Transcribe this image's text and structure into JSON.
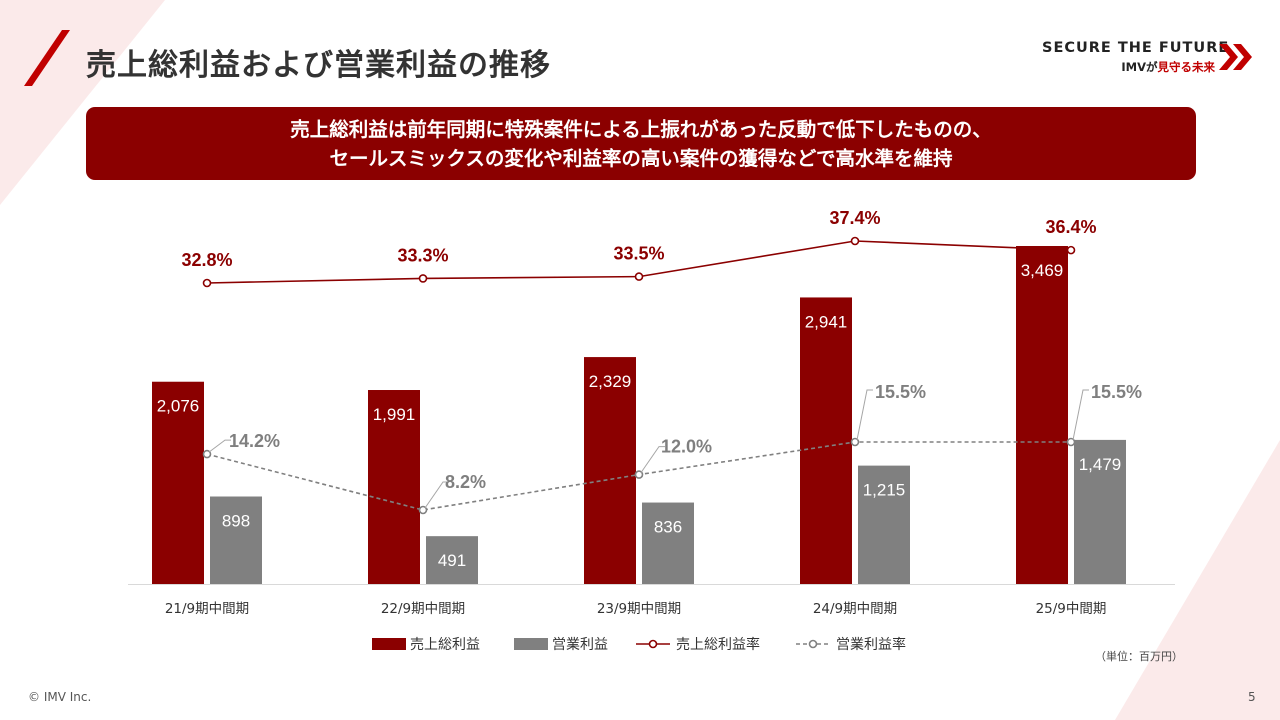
{
  "header": {
    "title": "売上総利益および営業利益の推移",
    "brand_line1": "SECURE THE FUTURE",
    "brand_line2_prefix": "IMVが",
    "brand_line2_highlight": "見守る未来"
  },
  "summary": {
    "line1": "売上総利益は前年同期に特殊案件による上振れがあった反動で低下したものの、",
    "line2": "セールスミックスの変化や利益率の高い案件の獲得などで高水準を維持"
  },
  "chart_data": {
    "type": "bar",
    "title": "",
    "categories": [
      "21/9期中間期",
      "22/9期中間期",
      "23/9期中間期",
      "24/9期中間期",
      "25/9中間期"
    ],
    "series": [
      {
        "name": "売上総利益",
        "kind": "bar",
        "values": [
          2076,
          1991,
          2329,
          2941,
          3469
        ],
        "labels": [
          "2,076",
          "1,991",
          "2,329",
          "2,941",
          "3,469"
        ],
        "color": "#8b0000"
      },
      {
        "name": "営業利益",
        "kind": "bar",
        "values": [
          898,
          491,
          836,
          1215,
          1479
        ],
        "labels": [
          "898",
          "491",
          "836",
          "1,215",
          "1,479"
        ],
        "color": "#808080"
      },
      {
        "name": "売上総利益率",
        "kind": "line",
        "values": [
          32.8,
          33.3,
          33.5,
          37.4,
          36.4
        ],
        "labels": [
          "32.8%",
          "33.3%",
          "33.5%",
          "37.4%",
          "36.4%"
        ],
        "color": "#8b0000"
      },
      {
        "name": "営業利益率",
        "kind": "line-dashed",
        "values": [
          14.2,
          8.2,
          12.0,
          15.5,
          15.5
        ],
        "labels": [
          "14.2%",
          "8.2%",
          "12.0%",
          "15.5%",
          "15.5%"
        ],
        "color": "#808080"
      }
    ],
    "y_bar_range": [
      0,
      4500
    ],
    "unit_note": "（単位：百万円）",
    "legend_position": "bottom"
  },
  "footer": {
    "copyright": "© IMV Inc.",
    "page_number": "5"
  },
  "colors": {
    "accent": "#8b0000",
    "gray": "#808080",
    "text": "#333333"
  }
}
